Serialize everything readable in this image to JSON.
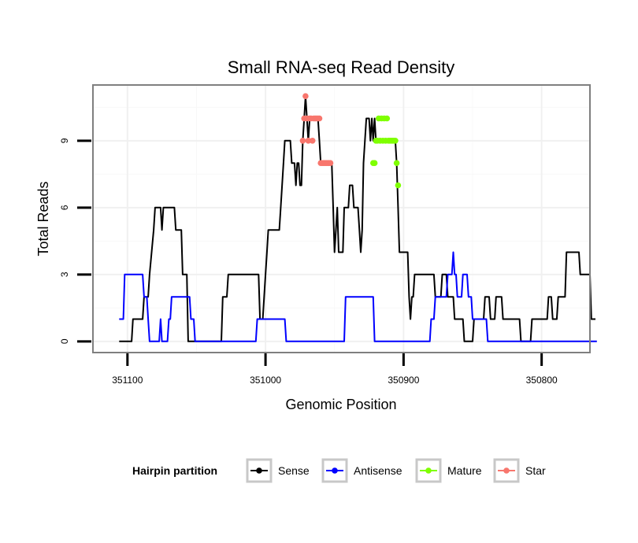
{
  "chart_data": {
    "type": "line",
    "title": "Small RNA-seq Read Density",
    "xlabel": "Genomic Position",
    "ylabel": "Total Reads",
    "xlim": [
      351125,
      350765
    ],
    "x_reversed": true,
    "ylim": [
      -0.5,
      11.5
    ],
    "x_ticks": [
      351100,
      351000,
      350900,
      350800
    ],
    "x_tick_labels": [
      "351100",
      "351000",
      "350900",
      "350800"
    ],
    "y_ticks": [
      0,
      3,
      6,
      9
    ],
    "y_tick_labels": [
      "0",
      "3",
      "6",
      "9"
    ],
    "grid": true,
    "legend": {
      "title": "Hairpin partition",
      "position": "bottom",
      "entries": [
        "Sense",
        "Antisense",
        "Mature",
        "Star"
      ]
    },
    "series": [
      {
        "name": "Sense",
        "kind": "line",
        "color": "#000000",
        "points": [
          [
            351106,
            0
          ],
          [
            351097,
            0
          ],
          [
            351096,
            1
          ],
          [
            351089,
            1
          ],
          [
            351088,
            2
          ],
          [
            351085,
            2
          ],
          [
            351084,
            3
          ],
          [
            351081,
            5
          ],
          [
            351080,
            6
          ],
          [
            351076,
            6
          ],
          [
            351075,
            5
          ],
          [
            351074,
            6
          ],
          [
            351066,
            6
          ],
          [
            351065,
            5
          ],
          [
            351061,
            5
          ],
          [
            351060,
            3
          ],
          [
            351057,
            3
          ],
          [
            351056,
            0
          ],
          [
            351032,
            0
          ],
          [
            351031,
            2
          ],
          [
            351028,
            2
          ],
          [
            351027,
            3
          ],
          [
            351005,
            3
          ],
          [
            351004,
            1
          ],
          [
            351002,
            1
          ],
          [
            351000,
            3
          ],
          [
            350999,
            4
          ],
          [
            350998,
            5
          ],
          [
            350990,
            5
          ],
          [
            350989,
            6
          ],
          [
            350987,
            8
          ],
          [
            350986,
            9
          ],
          [
            350982,
            9
          ],
          [
            350981,
            8
          ],
          [
            350979,
            8
          ],
          [
            350978,
            7
          ],
          [
            350977,
            8
          ],
          [
            350976,
            8
          ],
          [
            350975,
            7
          ],
          [
            350974,
            7
          ],
          [
            350973,
            9
          ],
          [
            350972,
            10
          ],
          [
            350971,
            11
          ],
          [
            350970,
            10
          ],
          [
            350969,
            9
          ],
          [
            350968,
            10
          ],
          [
            350962,
            10
          ],
          [
            350961,
            9
          ],
          [
            350960,
            8
          ],
          [
            350959,
            8
          ],
          [
            350958,
            8
          ],
          [
            350952,
            8
          ],
          [
            350951,
            6
          ],
          [
            350950,
            4
          ],
          [
            350949,
            5
          ],
          [
            350948,
            6
          ],
          [
            350947,
            4
          ],
          [
            350944,
            4
          ],
          [
            350943,
            6
          ],
          [
            350940,
            6
          ],
          [
            350939,
            7
          ],
          [
            350937,
            7
          ],
          [
            350936,
            6
          ],
          [
            350933,
            6
          ],
          [
            350932,
            5
          ],
          [
            350931,
            4
          ],
          [
            350930,
            5
          ],
          [
            350929,
            8
          ],
          [
            350928,
            9
          ],
          [
            350927,
            10
          ],
          [
            350925,
            10
          ],
          [
            350924,
            9
          ],
          [
            350923,
            10
          ],
          [
            350922,
            9
          ],
          [
            350921,
            10
          ],
          [
            350920,
            9
          ],
          [
            350906,
            9
          ],
          [
            350905,
            8
          ],
          [
            350904,
            6
          ],
          [
            350903,
            4
          ],
          [
            350897,
            4
          ],
          [
            350896,
            2
          ],
          [
            350895,
            1
          ],
          [
            350894,
            2
          ],
          [
            350893,
            2
          ],
          [
            350892,
            3
          ],
          [
            350878,
            3
          ],
          [
            350877,
            2
          ],
          [
            350873,
            2
          ],
          [
            350872,
            3
          ],
          [
            350869,
            3
          ],
          [
            350868,
            2
          ],
          [
            350864,
            2
          ],
          [
            350863,
            1
          ],
          [
            350857,
            1
          ],
          [
            350856,
            0
          ],
          [
            350850,
            0
          ],
          [
            350849,
            1
          ],
          [
            350842,
            1
          ],
          [
            350841,
            2
          ],
          [
            350838,
            2
          ],
          [
            350837,
            1
          ],
          [
            350834,
            1
          ],
          [
            350833,
            2
          ],
          [
            350829,
            2
          ],
          [
            350828,
            1
          ],
          [
            350816,
            1
          ],
          [
            350815,
            0
          ],
          [
            350808,
            0
          ],
          [
            350807,
            1
          ],
          [
            350796,
            1
          ],
          [
            350795,
            2
          ],
          [
            350793,
            2
          ],
          [
            350792,
            1
          ],
          [
            350789,
            1
          ],
          [
            350788,
            2
          ],
          [
            350783,
            2
          ],
          [
            350782,
            4
          ],
          [
            350773,
            4
          ],
          [
            350772,
            3
          ],
          [
            350765,
            3
          ],
          [
            350764,
            1
          ],
          [
            350761,
            1
          ]
        ]
      },
      {
        "name": "Antisense",
        "kind": "line",
        "color": "#0000ff",
        "points": [
          [
            351106,
            1
          ],
          [
            351103,
            1
          ],
          [
            351102,
            3
          ],
          [
            351089,
            3
          ],
          [
            351088,
            2
          ],
          [
            351086,
            2
          ],
          [
            351085,
            1
          ],
          [
            351084,
            0
          ],
          [
            351077,
            0
          ],
          [
            351076,
            1
          ],
          [
            351075,
            0
          ],
          [
            351071,
            0
          ],
          [
            351070,
            1
          ],
          [
            351069,
            1
          ],
          [
            351068,
            2
          ],
          [
            351055,
            2
          ],
          [
            351054,
            1
          ],
          [
            351052,
            1
          ],
          [
            351051,
            0
          ],
          [
            351007,
            0
          ],
          [
            351006,
            1
          ],
          [
            350986,
            1
          ],
          [
            350985,
            0
          ],
          [
            350943,
            0
          ],
          [
            350942,
            2
          ],
          [
            350922,
            2
          ],
          [
            350921,
            0
          ],
          [
            350881,
            0
          ],
          [
            350880,
            1
          ],
          [
            350878,
            1
          ],
          [
            350877,
            2
          ],
          [
            350869,
            2
          ],
          [
            350868,
            3
          ],
          [
            350865,
            3
          ],
          [
            350864,
            4
          ],
          [
            350863,
            3
          ],
          [
            350862,
            3
          ],
          [
            350861,
            2
          ],
          [
            350858,
            2
          ],
          [
            350857,
            3
          ],
          [
            350854,
            3
          ],
          [
            350853,
            2
          ],
          [
            350851,
            2
          ],
          [
            350850,
            1
          ],
          [
            350840,
            1
          ],
          [
            350839,
            0
          ],
          [
            350760,
            0
          ]
        ]
      },
      {
        "name": "Mature",
        "kind": "points",
        "color": "#7fff00",
        "points": [
          [
            350922,
            8
          ],
          [
            350921,
            8
          ],
          [
            350920,
            9
          ],
          [
            350919,
            9
          ],
          [
            350918,
            10
          ],
          [
            350917,
            9
          ],
          [
            350916,
            10
          ],
          [
            350915,
            9
          ],
          [
            350914,
            10
          ],
          [
            350913,
            9
          ],
          [
            350912,
            10
          ],
          [
            350911,
            9
          ],
          [
            350910,
            9
          ],
          [
            350909,
            9
          ],
          [
            350908,
            9
          ],
          [
            350907,
            9
          ],
          [
            350906,
            9
          ],
          [
            350905,
            8
          ],
          [
            350904,
            7
          ]
        ]
      },
      {
        "name": "Star",
        "kind": "points",
        "color": "#f8766d",
        "points": [
          [
            350973,
            9
          ],
          [
            350972,
            10
          ],
          [
            350971,
            11
          ],
          [
            350970,
            10
          ],
          [
            350969,
            9
          ],
          [
            350968,
            10
          ],
          [
            350967,
            10
          ],
          [
            350966,
            9
          ],
          [
            350965,
            10
          ],
          [
            350964,
            10
          ],
          [
            350963,
            10
          ],
          [
            350962,
            10
          ],
          [
            350961,
            10
          ],
          [
            350960,
            8
          ],
          [
            350959,
            8
          ],
          [
            350958,
            8
          ],
          [
            350957,
            8
          ],
          [
            350956,
            8
          ],
          [
            350955,
            8
          ],
          [
            350954,
            8
          ],
          [
            350953,
            8
          ]
        ]
      }
    ]
  }
}
